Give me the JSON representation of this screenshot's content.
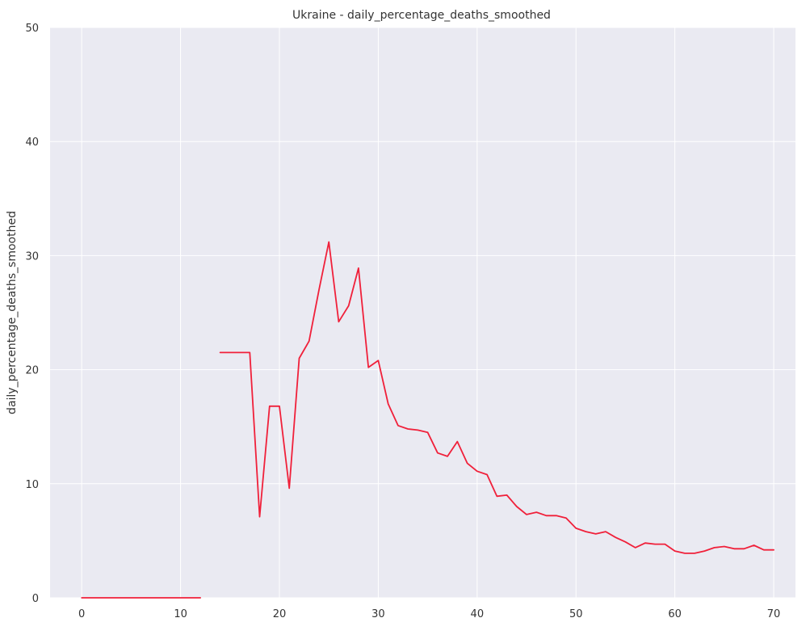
{
  "chart_data": {
    "type": "line",
    "title": "Ukraine - daily_percentage_deaths_smoothed",
    "xlabel": "",
    "ylabel": "daily_percentage_deaths_smoothed",
    "xlim": [
      -3.2,
      72.2
    ],
    "ylim": [
      0,
      50
    ],
    "xticks": [
      0,
      10,
      20,
      30,
      40,
      50,
      60,
      70
    ],
    "yticks": [
      0,
      10,
      20,
      30,
      40,
      50
    ],
    "grid": true,
    "colors": {
      "background": "#eaeaf2",
      "grid": "#ffffff",
      "text": "#333333",
      "line": "#f0203a"
    },
    "series": [
      {
        "segments": [
          [
            [
              0,
              0
            ],
            [
              1,
              0
            ],
            [
              2,
              0
            ],
            [
              3,
              0
            ],
            [
              4,
              0
            ],
            [
              5,
              0
            ],
            [
              6,
              0
            ],
            [
              7,
              0
            ],
            [
              8,
              0
            ],
            [
              9,
              0
            ],
            [
              10,
              0
            ],
            [
              11,
              0
            ],
            [
              12,
              0
            ]
          ],
          [
            [
              14,
              21.5
            ],
            [
              15,
              21.5
            ],
            [
              16,
              21.5
            ],
            [
              17,
              21.5
            ],
            [
              18,
              7.1
            ],
            [
              19,
              16.8
            ],
            [
              20,
              16.8
            ],
            [
              21,
              9.6
            ],
            [
              22,
              21.0
            ],
            [
              23,
              22.5
            ],
            [
              24,
              27.0
            ],
            [
              25,
              31.2
            ],
            [
              26,
              24.2
            ],
            [
              27,
              25.6
            ],
            [
              28,
              28.9
            ],
            [
              29,
              20.2
            ],
            [
              30,
              20.8
            ],
            [
              31,
              17.0
            ],
            [
              32,
              15.1
            ],
            [
              33,
              14.8
            ],
            [
              34,
              14.7
            ],
            [
              35,
              14.5
            ],
            [
              36,
              12.7
            ],
            [
              37,
              12.4
            ],
            [
              38,
              13.7
            ],
            [
              39,
              11.8
            ],
            [
              40,
              11.1
            ],
            [
              41,
              10.8
            ],
            [
              42,
              8.9
            ],
            [
              43,
              9.0
            ],
            [
              44,
              8.0
            ],
            [
              45,
              7.3
            ],
            [
              46,
              7.5
            ],
            [
              47,
              7.2
            ],
            [
              48,
              7.2
            ],
            [
              49,
              7.0
            ],
            [
              50,
              6.1
            ],
            [
              51,
              5.8
            ],
            [
              52,
              5.6
            ],
            [
              53,
              5.8
            ],
            [
              54,
              5.3
            ],
            [
              55,
              4.9
            ],
            [
              56,
              4.4
            ],
            [
              57,
              4.8
            ],
            [
              58,
              4.7
            ],
            [
              59,
              4.7
            ],
            [
              60,
              4.1
            ],
            [
              61,
              3.9
            ],
            [
              62,
              3.9
            ],
            [
              63,
              4.1
            ],
            [
              64,
              4.4
            ],
            [
              65,
              4.5
            ],
            [
              66,
              4.3
            ],
            [
              67,
              4.3
            ],
            [
              68,
              4.6
            ],
            [
              69,
              4.2
            ],
            [
              70,
              4.2
            ]
          ]
        ]
      }
    ]
  }
}
